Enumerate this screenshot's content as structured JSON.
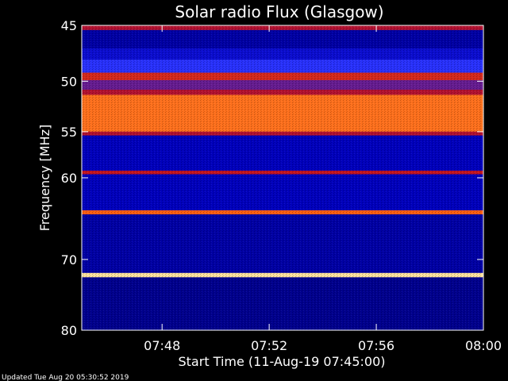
{
  "chart_data": {
    "type": "heatmap",
    "title": "Solar radio Flux (Glasgow)",
    "ylabel": "Frequency [MHz]",
    "xlabel": "Start Time (11-Aug-19 07:45:00)",
    "ylim": [
      45,
      80
    ],
    "y_scale": "log",
    "y_ticks": [
      45,
      50,
      55,
      60,
      70,
      80
    ],
    "x_range": [
      "07:45",
      "08:00"
    ],
    "x_ticks": [
      "07:48",
      "07:52",
      "07:56",
      "08:00"
    ],
    "colormap": [
      "#000018",
      "#0000c0",
      "#2a33ff",
      "#6a1a8a",
      "#c01020",
      "#ff5a10",
      "#ffb040",
      "#ffffd0"
    ],
    "frequency_bands": [
      {
        "from": 45.0,
        "to": 45.4,
        "level": 0.55
      },
      {
        "from": 45.4,
        "to": 47.0,
        "level": 0.12
      },
      {
        "from": 47.0,
        "to": 48.0,
        "level": 0.18
      },
      {
        "from": 48.0,
        "to": 49.2,
        "level": 0.28
      },
      {
        "from": 49.2,
        "to": 49.9,
        "level": 0.62
      },
      {
        "from": 49.9,
        "to": 50.8,
        "level": 0.42
      },
      {
        "from": 50.8,
        "to": 51.3,
        "level": 0.55
      },
      {
        "from": 51.3,
        "to": 55.0,
        "level": 0.75
      },
      {
        "from": 55.0,
        "to": 55.4,
        "level": 0.55
      },
      {
        "from": 55.4,
        "to": 59.2,
        "level": 0.14
      },
      {
        "from": 59.2,
        "to": 59.6,
        "level": 0.58
      },
      {
        "from": 59.6,
        "to": 63.8,
        "level": 0.14
      },
      {
        "from": 63.8,
        "to": 64.3,
        "level": 0.72
      },
      {
        "from": 64.3,
        "to": 71.8,
        "level": 0.12
      },
      {
        "from": 71.8,
        "to": 72.4,
        "level": 0.95
      },
      {
        "from": 72.4,
        "to": 80.0,
        "level": 0.1
      }
    ],
    "footer": "Updated Tue Aug 20 05:30:52 2019"
  }
}
